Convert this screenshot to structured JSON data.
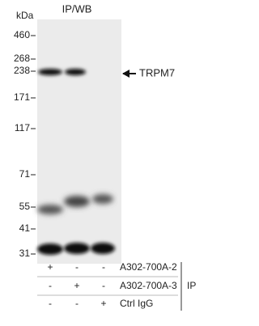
{
  "title": "IP/WB",
  "markers": {
    "unit": "kDa",
    "labels": [
      "460",
      "268",
      "238",
      "171",
      "117",
      "71",
      "55",
      "41",
      "31"
    ]
  },
  "target": "TRPM7",
  "table": {
    "rows": [
      {
        "cells": [
          "+",
          "-",
          "-"
        ],
        "label": "A302-700A-2"
      },
      {
        "cells": [
          "-",
          "+",
          "-"
        ],
        "label": "A302-700A-3"
      },
      {
        "cells": [
          "-",
          "-",
          "+"
        ],
        "label": "Ctrl IgG"
      }
    ],
    "group_label": "IP"
  }
}
